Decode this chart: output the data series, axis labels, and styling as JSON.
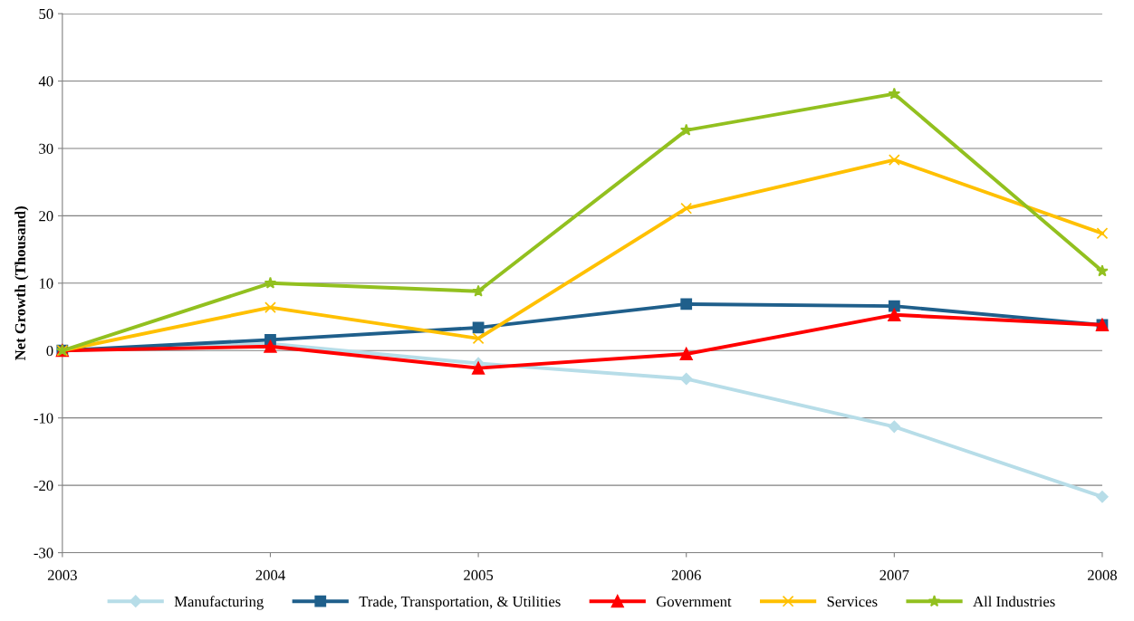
{
  "chart_data": {
    "type": "line",
    "ylabel": "Net Growth (Thousand)",
    "x": [
      2003,
      2004,
      2005,
      2006,
      2007,
      2008
    ],
    "xlim": [
      2003,
      2008
    ],
    "xticks": [
      2003,
      2004,
      2005,
      2006,
      2007,
      2008
    ],
    "ylim": [
      -30,
      50
    ],
    "yticks": [
      -30,
      -20,
      -10,
      0,
      10,
      20,
      30,
      40,
      50
    ],
    "grid": "y",
    "legend": "bottom",
    "series": [
      {
        "name": "Manufacturing",
        "color": "#b7dde8",
        "marker": "diamond",
        "values": [
          0,
          1,
          -1.9,
          -4.2,
          -11.3,
          -21.7
        ]
      },
      {
        "name": "Trade, Transportation, & Utilities",
        "color": "#1f5f8b",
        "marker": "square",
        "values": [
          0,
          1.6,
          3.4,
          6.9,
          6.6,
          3.8
        ]
      },
      {
        "name": "Government",
        "color": "#ff0000",
        "marker": "triangle",
        "values": [
          0,
          0.6,
          -2.6,
          -0.5,
          5.3,
          3.8
        ]
      },
      {
        "name": "Services",
        "color": "#ffc000",
        "marker": "cross",
        "values": [
          0,
          6.4,
          1.8,
          21.1,
          28.3,
          17.4
        ]
      },
      {
        "name": "All Industries",
        "color": "#92c01f",
        "marker": "star",
        "values": [
          0,
          10.0,
          8.8,
          32.7,
          38.1,
          11.8
        ]
      }
    ]
  }
}
